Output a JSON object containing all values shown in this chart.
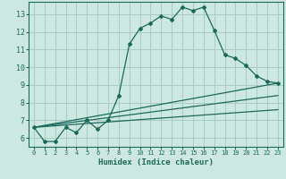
{
  "xlabel": "Humidex (Indice chaleur)",
  "ylabel": "",
  "background_color": "#cce8e0",
  "grid_color": "#aaccC4",
  "line_color": "#1a6a5a",
  "xlim": [
    -0.5,
    23.5
  ],
  "ylim": [
    5.5,
    13.7
  ],
  "yticks": [
    6,
    7,
    8,
    9,
    10,
    11,
    12,
    13
  ],
  "xticks": [
    0,
    1,
    2,
    3,
    4,
    5,
    6,
    7,
    8,
    9,
    10,
    11,
    12,
    13,
    14,
    15,
    16,
    17,
    18,
    19,
    20,
    21,
    22,
    23
  ],
  "main_x": [
    0,
    1,
    2,
    3,
    4,
    5,
    6,
    7,
    8,
    9,
    10,
    11,
    12,
    13,
    14,
    15,
    16,
    17,
    18,
    19,
    20,
    21,
    22,
    23
  ],
  "main_y": [
    6.6,
    5.8,
    5.8,
    6.6,
    6.3,
    7.0,
    6.5,
    7.0,
    8.4,
    11.3,
    12.2,
    12.5,
    12.9,
    12.7,
    13.4,
    13.2,
    13.4,
    12.1,
    10.7,
    10.5,
    10.1,
    9.5,
    9.2,
    9.1
  ],
  "line1_x": [
    0,
    23
  ],
  "line1_y": [
    6.6,
    9.1
  ],
  "line2_x": [
    0,
    23
  ],
  "line2_y": [
    6.6,
    8.4
  ],
  "line3_x": [
    0,
    23
  ],
  "line3_y": [
    6.6,
    7.6
  ]
}
